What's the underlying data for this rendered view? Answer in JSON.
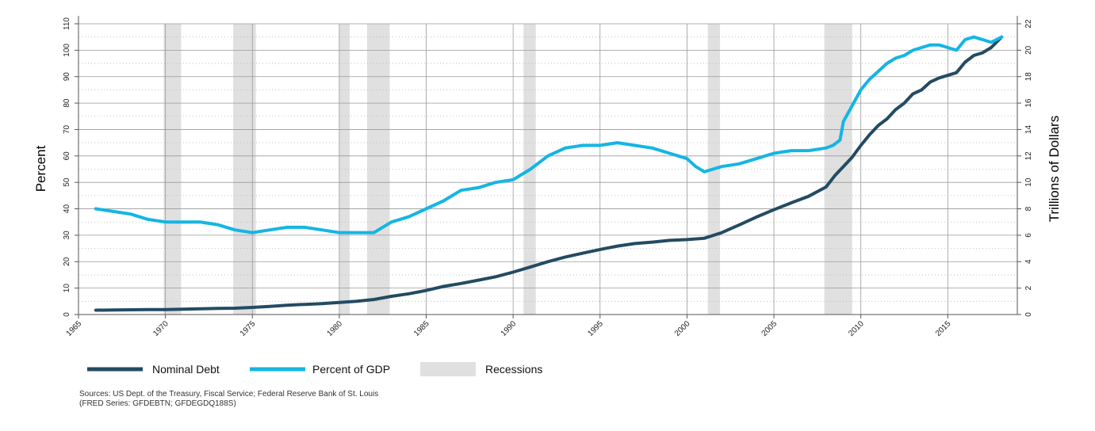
{
  "chart_data": {
    "type": "line",
    "left_axis": {
      "label": "Percent",
      "ylim": [
        0,
        110
      ],
      "ticks": [
        0,
        10,
        20,
        30,
        40,
        50,
        60,
        70,
        80,
        90,
        100,
        110
      ]
    },
    "right_axis": {
      "label": "Trillions of Dollars",
      "ylim": [
        0,
        22
      ],
      "ticks": [
        0,
        2,
        4,
        6,
        8,
        10,
        12,
        14,
        16,
        18,
        20,
        22
      ]
    },
    "x_axis": {
      "xlim": [
        1965,
        2019
      ],
      "ticks": [
        1965,
        1970,
        1975,
        1980,
        1985,
        1990,
        1995,
        2000,
        2005,
        2010,
        2015
      ]
    },
    "grid": true,
    "legend_position": "bottom-left",
    "colors": {
      "nominal_debt": "#234b63",
      "percent_gdp": "#14b5e4",
      "recession": "#e0e0e0"
    },
    "recessions": [
      [
        1969.9,
        1970.9
      ],
      [
        1973.9,
        1975.2
      ],
      [
        1980.0,
        1980.6
      ],
      [
        1981.6,
        1982.9
      ],
      [
        1990.6,
        1991.3
      ],
      [
        2001.2,
        2001.9
      ],
      [
        2007.9,
        2009.5
      ]
    ],
    "series": [
      {
        "name": "Nominal Debt",
        "axis": "right",
        "x": [
          1966,
          1967,
          1968,
          1969,
          1970,
          1971,
          1972,
          1973,
          1974,
          1975,
          1976,
          1977,
          1978,
          1979,
          1980,
          1981,
          1982,
          1983,
          1984,
          1985,
          1986,
          1987,
          1988,
          1989,
          1990,
          1991,
          1992,
          1993,
          1994,
          1995,
          1996,
          1997,
          1998,
          1999,
          2000,
          2001,
          2002,
          2003,
          2004,
          2005,
          2006,
          2007,
          2008,
          2008.5,
          2009,
          2009.5,
          2010,
          2010.5,
          2011,
          2011.5,
          2012,
          2012.5,
          2013,
          2013.5,
          2014,
          2014.5,
          2015,
          2015.5,
          2016,
          2016.5,
          2017,
          2017.5,
          2018.1
        ],
        "values": [
          0.33,
          0.34,
          0.36,
          0.37,
          0.38,
          0.41,
          0.43,
          0.46,
          0.48,
          0.54,
          0.62,
          0.7,
          0.77,
          0.83,
          0.91,
          1.0,
          1.14,
          1.38,
          1.57,
          1.82,
          2.13,
          2.35,
          2.6,
          2.86,
          3.21,
          3.6,
          4.0,
          4.35,
          4.64,
          4.92,
          5.18,
          5.37,
          5.48,
          5.61,
          5.67,
          5.77,
          6.2,
          6.78,
          7.38,
          7.93,
          8.45,
          8.95,
          9.65,
          10.5,
          11.2,
          11.9,
          12.8,
          13.6,
          14.3,
          14.8,
          15.5,
          16.0,
          16.7,
          17.0,
          17.6,
          17.9,
          18.1,
          18.3,
          19.1,
          19.6,
          19.8,
          20.2,
          21.0
        ]
      },
      {
        "name": "Percent of GDP",
        "axis": "left",
        "x": [
          1966,
          1967,
          1968,
          1969,
          1970,
          1971,
          1972,
          1973,
          1974,
          1975,
          1976,
          1977,
          1978,
          1979,
          1980,
          1981,
          1982,
          1983,
          1984,
          1985,
          1986,
          1987,
          1988,
          1989,
          1990,
          1991,
          1992,
          1993,
          1994,
          1995,
          1996,
          1997,
          1998,
          1999,
          2000,
          2000.5,
          2001,
          2002,
          2003,
          2004,
          2005,
          2006,
          2007,
          2008,
          2008.4,
          2008.8,
          2009,
          2009.5,
          2010,
          2010.5,
          2011,
          2011.5,
          2012,
          2012.5,
          2013,
          2013.5,
          2014,
          2014.5,
          2015,
          2015.5,
          2016,
          2016.5,
          2017,
          2017.5,
          2018.1
        ],
        "values": [
          40,
          39,
          38,
          36,
          35,
          35,
          35,
          34,
          32,
          31,
          32,
          33,
          33,
          32,
          31,
          31,
          31,
          35,
          37,
          40,
          43,
          47,
          48,
          50,
          51,
          55,
          60,
          63,
          64,
          64,
          65,
          64,
          63,
          61,
          59,
          56,
          54,
          56,
          57,
          59,
          61,
          62,
          62,
          63,
          64,
          66,
          73,
          79,
          85,
          89,
          92,
          95,
          97,
          98,
          100,
          101,
          102,
          102,
          101,
          100,
          104,
          105,
          104,
          103,
          105
        ]
      }
    ]
  },
  "legend": {
    "nominal_debt": "Nominal Debt",
    "percent_gdp": "Percent of GDP",
    "recessions": "Recessions"
  },
  "source_text": "Sources: US Dept. of the Treasury, Fiscal Service; Federal Reserve Bank of St. Louis\n(FRED Series: GFDEBTN; GFDEGDQ188S)"
}
